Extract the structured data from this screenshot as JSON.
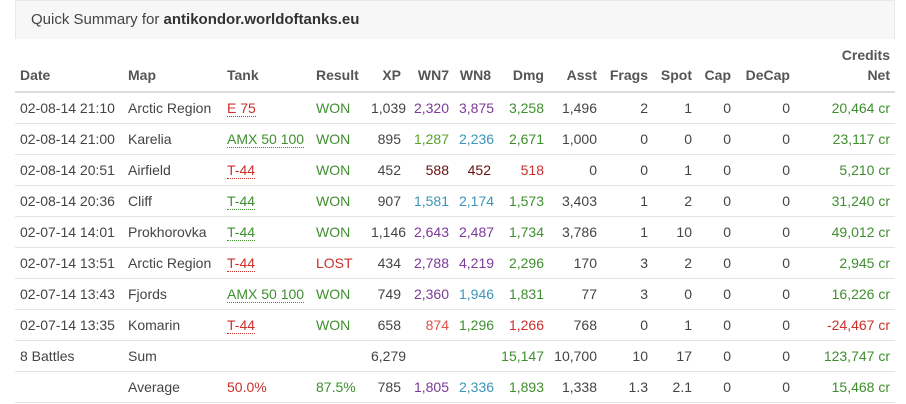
{
  "header": {
    "prefix": "Quick Summary for",
    "account": "antikondor.worldoftanks.eu"
  },
  "table": {
    "columns": [
      "Date",
      "Map",
      "Tank",
      "Result",
      "XP",
      "WN7",
      "WN8",
      "Dmg",
      "Asst",
      "Frags",
      "Spot",
      "Cap",
      "DeCap",
      "Credits Net"
    ],
    "rows": [
      [
        "02-08-14 21:10",
        "Arctic Region",
        "E 75",
        "WON",
        "1,039",
        "2,320",
        "3,875",
        "3,258",
        "1,496",
        "2",
        "1",
        "0",
        "0",
        "20,464 cr"
      ],
      [
        "02-08-14 21:00",
        "Karelia",
        "AMX 50 100",
        "WON",
        "895",
        "1,287",
        "2,236",
        "2,671",
        "1,000",
        "0",
        "0",
        "0",
        "0",
        "23,117 cr"
      ],
      [
        "02-08-14 20:51",
        "Airfield",
        "T-44",
        "WON",
        "452",
        "588",
        "452",
        "518",
        "0",
        "0",
        "1",
        "0",
        "0",
        "5,210 cr"
      ],
      [
        "02-08-14 20:36",
        "Cliff",
        "T-44",
        "WON",
        "907",
        "1,581",
        "2,174",
        "1,573",
        "3,403",
        "1",
        "2",
        "0",
        "0",
        "31,240 cr"
      ],
      [
        "02-07-14 14:01",
        "Prokhorovka",
        "T-44",
        "WON",
        "1,146",
        "2,643",
        "2,487",
        "1,734",
        "3,786",
        "1",
        "10",
        "0",
        "0",
        "49,012 cr"
      ],
      [
        "02-07-14 13:51",
        "Arctic Region",
        "T-44",
        "LOST",
        "434",
        "2,788",
        "4,219",
        "2,296",
        "170",
        "3",
        "2",
        "0",
        "0",
        "2,945 cr"
      ],
      [
        "02-07-14 13:43",
        "Fjords",
        "AMX 50 100",
        "WON",
        "749",
        "2,360",
        "1,946",
        "1,831",
        "77",
        "3",
        "0",
        "0",
        "0",
        "16,226 cr"
      ],
      [
        "02-07-14 13:35",
        "Komarin",
        "T-44",
        "WON",
        "658",
        "874",
        "1,296",
        "1,266",
        "768",
        "0",
        "1",
        "0",
        "0",
        "-24,467 cr"
      ],
      [
        "8 Battles",
        "Sum",
        null,
        null,
        "6,279",
        null,
        null,
        "15,147",
        "10,700",
        "10",
        "17",
        "0",
        "0",
        "123,747 cr"
      ],
      [
        null,
        "Average",
        "50.0%",
        "87.5%",
        "785",
        "1,805",
        "2,336",
        "1,893",
        "1,338",
        "1.3",
        "2.1",
        "0",
        "0",
        "15,468 cr"
      ]
    ]
  }
}
